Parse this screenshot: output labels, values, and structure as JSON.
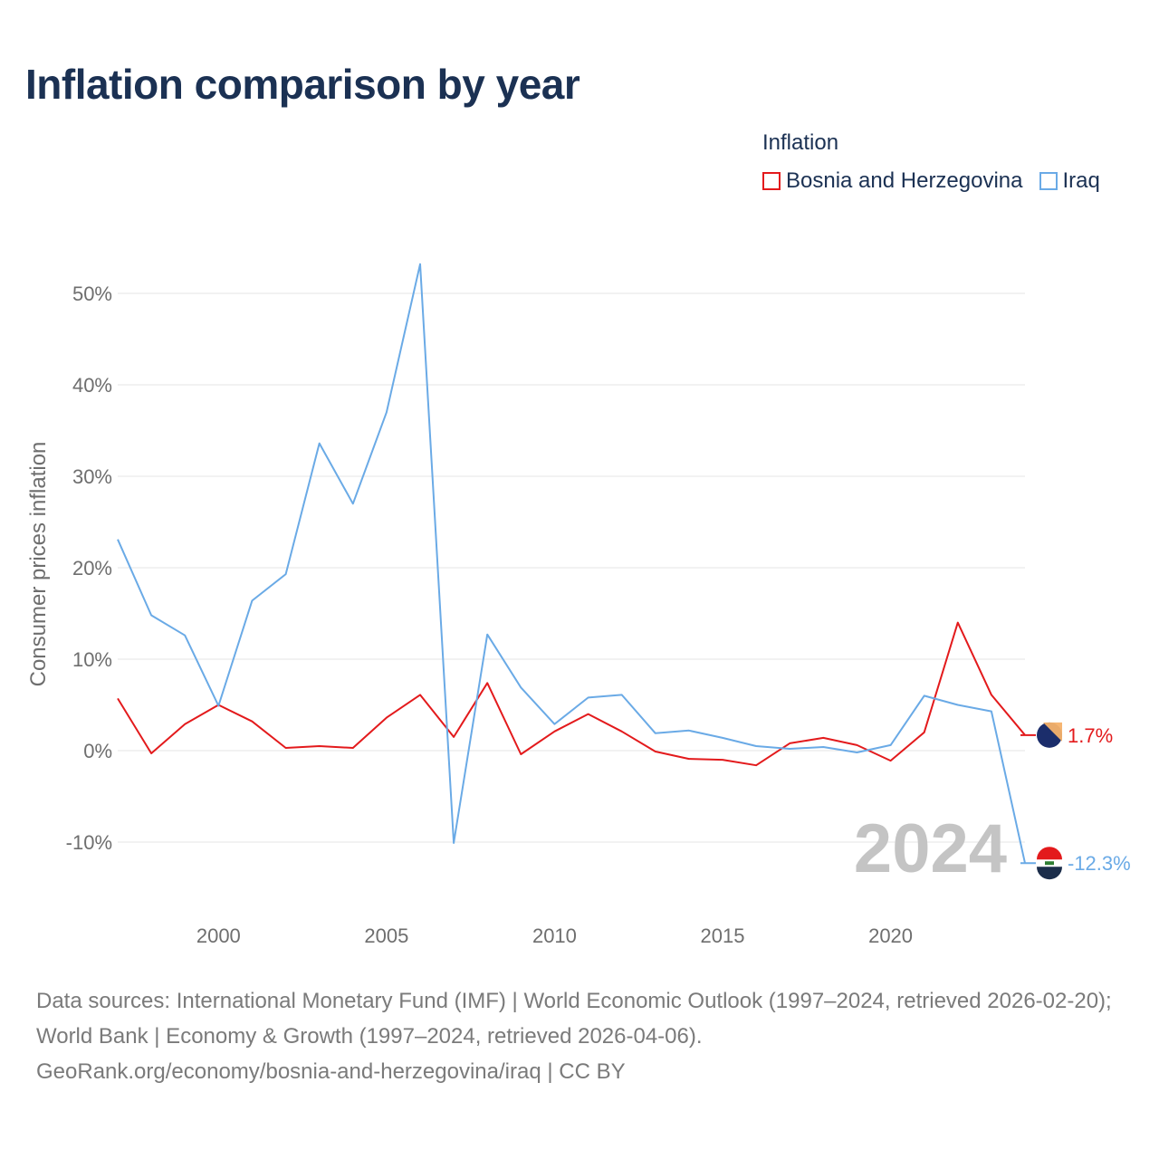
{
  "title": "Inflation comparison by year",
  "legend": {
    "title": "Inflation",
    "items": [
      {
        "label": "Bosnia and Herzegovina",
        "color": "#e31a1c"
      },
      {
        "label": "Iraq",
        "color": "#6aaae6"
      }
    ]
  },
  "source": {
    "line1": "Data sources: International Monetary Fund (IMF) | World Economic Outlook (1997–2024, retrieved 2026-02-20); World Bank | Economy & Growth (1997–2024, retrieved 2026-04-06).",
    "line2": "GeoRank.org/economy/bosnia-and-herzegovina/iraq | CC BY"
  },
  "chart_data": {
    "type": "line",
    "title": "Inflation comparison by year",
    "xlabel": "",
    "ylabel": "Consumer prices inflation",
    "xlim": [
      1997,
      2024
    ],
    "ylim": [
      -15,
      58
    ],
    "grid": true,
    "x_ticks": [
      2000,
      2005,
      2010,
      2015,
      2020
    ],
    "y_ticks": [
      -10,
      0,
      10,
      20,
      30,
      40,
      50
    ],
    "y_tick_labels": [
      "-10%",
      "0%",
      "10%",
      "20%",
      "30%",
      "40%",
      "50%"
    ],
    "year_label": "2024",
    "x": [
      1997,
      1998,
      1999,
      2000,
      2001,
      2002,
      2003,
      2004,
      2005,
      2006,
      2007,
      2008,
      2009,
      2010,
      2011,
      2012,
      2013,
      2014,
      2015,
      2016,
      2017,
      2018,
      2019,
      2020,
      2021,
      2022,
      2023,
      2024
    ],
    "series": [
      {
        "name": "Bosnia and Herzegovina",
        "color": "#e31a1c",
        "end_label": "1.7%",
        "values": [
          5.7,
          -0.3,
          2.9,
          5.0,
          3.2,
          0.3,
          0.5,
          0.3,
          3.6,
          6.1,
          1.5,
          7.4,
          -0.4,
          2.1,
          4.0,
          2.1,
          -0.1,
          -0.9,
          -1.0,
          -1.6,
          0.8,
          1.4,
          0.6,
          -1.1,
          2.0,
          14.0,
          6.1,
          1.7
        ]
      },
      {
        "name": "Iraq",
        "color": "#6aaae6",
        "end_label": "-12.3%",
        "values": [
          23.1,
          14.8,
          12.6,
          4.9,
          16.4,
          19.3,
          33.6,
          27.0,
          37.0,
          53.2,
          -10.1,
          12.7,
          6.9,
          2.9,
          5.8,
          6.1,
          1.9,
          2.2,
          1.4,
          0.5,
          0.2,
          0.4,
          -0.2,
          0.6,
          6.0,
          5.0,
          4.3,
          -12.3
        ]
      }
    ]
  }
}
